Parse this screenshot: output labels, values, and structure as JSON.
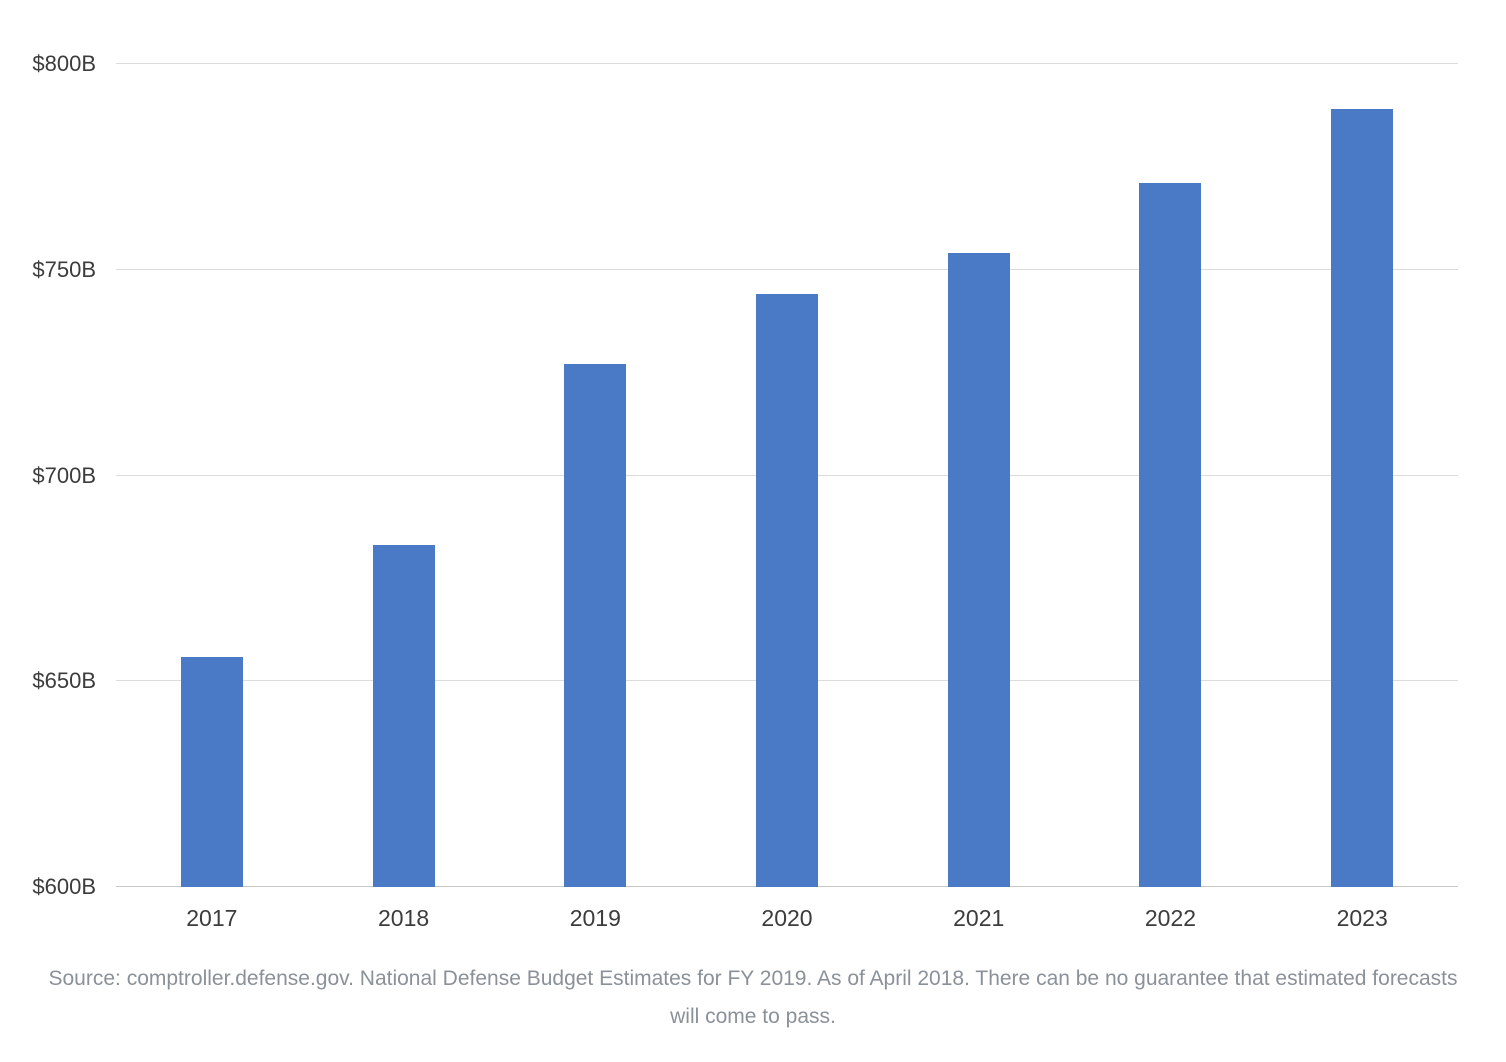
{
  "chart_data": {
    "type": "bar",
    "title": "",
    "xlabel": "",
    "ylabel": "",
    "categories": [
      "2017",
      "2018",
      "2019",
      "2020",
      "2021",
      "2022",
      "2023"
    ],
    "values": [
      656,
      683,
      727,
      744,
      754,
      771,
      789
    ],
    "ylim": [
      600,
      800
    ],
    "yticks": [
      {
        "value": 600,
        "label": "$600B"
      },
      {
        "value": 650,
        "label": "$650B"
      },
      {
        "value": 700,
        "label": "$700B"
      },
      {
        "value": 750,
        "label": "$750B"
      },
      {
        "value": 800,
        "label": "$800B"
      }
    ],
    "grid": true,
    "legend": false,
    "bar_color": "#4a79c6"
  },
  "footer": {
    "source": "Source: comptroller.defense.gov. National Defense Budget Estimates for FY 2019. As of April 2018. There can be no guarantee that estimated forecasts will come to pass."
  }
}
